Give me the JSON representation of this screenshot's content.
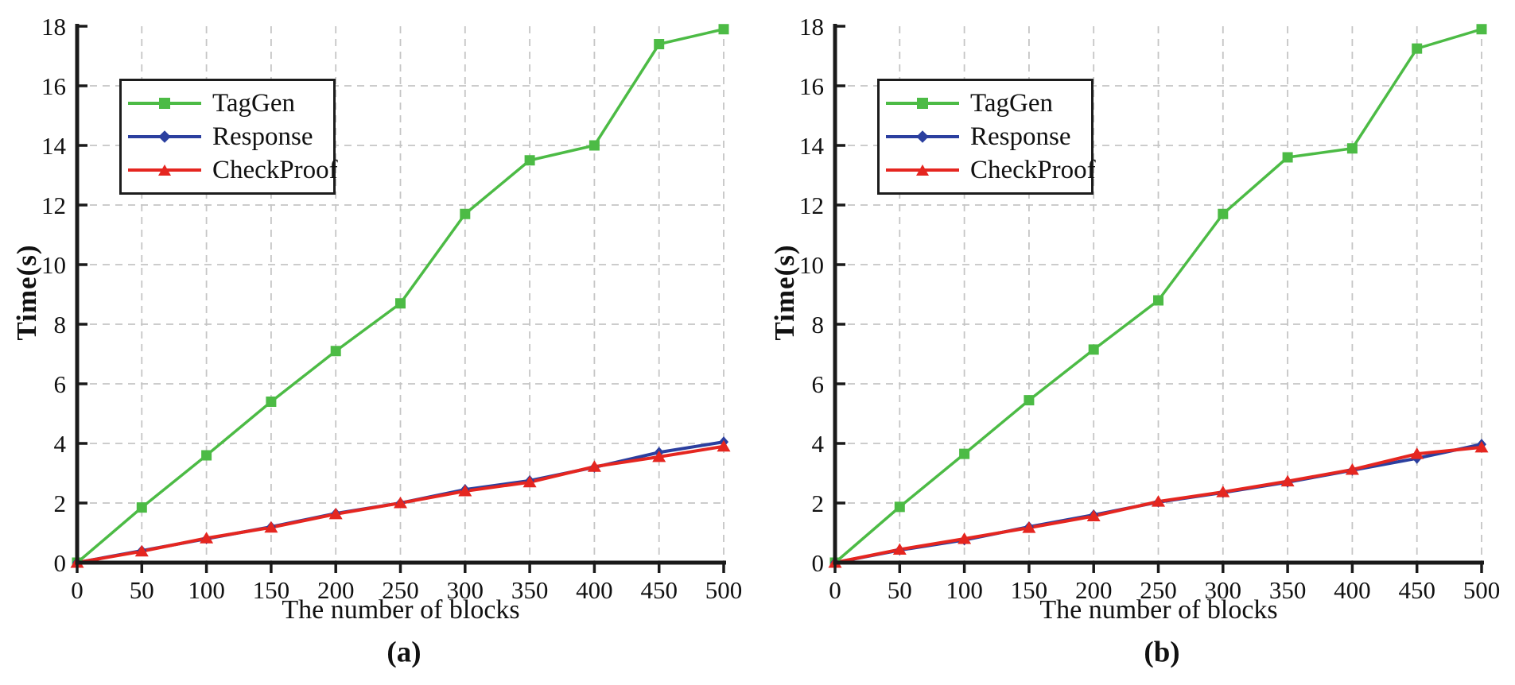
{
  "colors": {
    "background": "#ffffff",
    "grid": "#c5c5c5",
    "axis": "#1a1a1a",
    "text": "#111111",
    "taggen_green": "#4cbb45",
    "response_blue": "#2b3f9f",
    "checkproof_red": "#e52620"
  },
  "chart_data": [
    {
      "id": "a",
      "type": "line",
      "caption": "(a)",
      "xlabel": "The number of blocks",
      "ylabel": "Time(s)",
      "xlim": [
        0,
        500
      ],
      "ylim": [
        0,
        18
      ],
      "xticks": [
        0,
        50,
        100,
        150,
        200,
        250,
        300,
        350,
        400,
        450,
        500
      ],
      "yticks": [
        0,
        2,
        4,
        6,
        8,
        10,
        12,
        14,
        16,
        18
      ],
      "grid": "dashed",
      "legend_position": "upper-left",
      "x": [
        0,
        50,
        100,
        150,
        200,
        250,
        300,
        350,
        400,
        450,
        500
      ],
      "series": [
        {
          "name": "TagGen",
          "color": "#4cbb45",
          "marker": "square",
          "values": [
            0,
            1.85,
            3.6,
            5.4,
            7.1,
            8.7,
            11.7,
            13.5,
            14.0,
            17.4,
            17.9
          ]
        },
        {
          "name": "Response",
          "color": "#2b3f9f",
          "marker": "diamond",
          "values": [
            0,
            0.4,
            0.8,
            1.2,
            1.65,
            2.0,
            2.45,
            2.75,
            3.2,
            3.7,
            4.05
          ]
        },
        {
          "name": "CheckProof",
          "color": "#e52620",
          "marker": "triangle",
          "values": [
            0,
            0.38,
            0.82,
            1.18,
            1.63,
            2.0,
            2.4,
            2.7,
            3.22,
            3.55,
            3.9
          ]
        }
      ]
    },
    {
      "id": "b",
      "type": "line",
      "caption": "(b)",
      "xlabel": "The number of blocks",
      "ylabel": "Time(s)",
      "xlim": [
        0,
        500
      ],
      "ylim": [
        0,
        18
      ],
      "xticks": [
        0,
        50,
        100,
        150,
        200,
        250,
        300,
        350,
        400,
        450,
        500
      ],
      "yticks": [
        0,
        2,
        4,
        6,
        8,
        10,
        12,
        14,
        16,
        18
      ],
      "grid": "dashed",
      "legend_position": "upper-left",
      "x": [
        0,
        50,
        100,
        150,
        200,
        250,
        300,
        350,
        400,
        450,
        500
      ],
      "series": [
        {
          "name": "TagGen",
          "color": "#4cbb45",
          "marker": "square",
          "values": [
            0,
            1.87,
            3.65,
            5.45,
            7.15,
            8.8,
            11.7,
            13.6,
            13.9,
            17.25,
            17.9
          ]
        },
        {
          "name": "Response",
          "color": "#2b3f9f",
          "marker": "diamond",
          "values": [
            0,
            0.42,
            0.76,
            1.2,
            1.6,
            2.03,
            2.35,
            2.7,
            3.1,
            3.5,
            3.97
          ]
        },
        {
          "name": "CheckProof",
          "color": "#e52620",
          "marker": "triangle",
          "values": [
            0,
            0.44,
            0.8,
            1.17,
            1.56,
            2.05,
            2.37,
            2.73,
            3.12,
            3.65,
            3.87
          ]
        }
      ]
    }
  ]
}
